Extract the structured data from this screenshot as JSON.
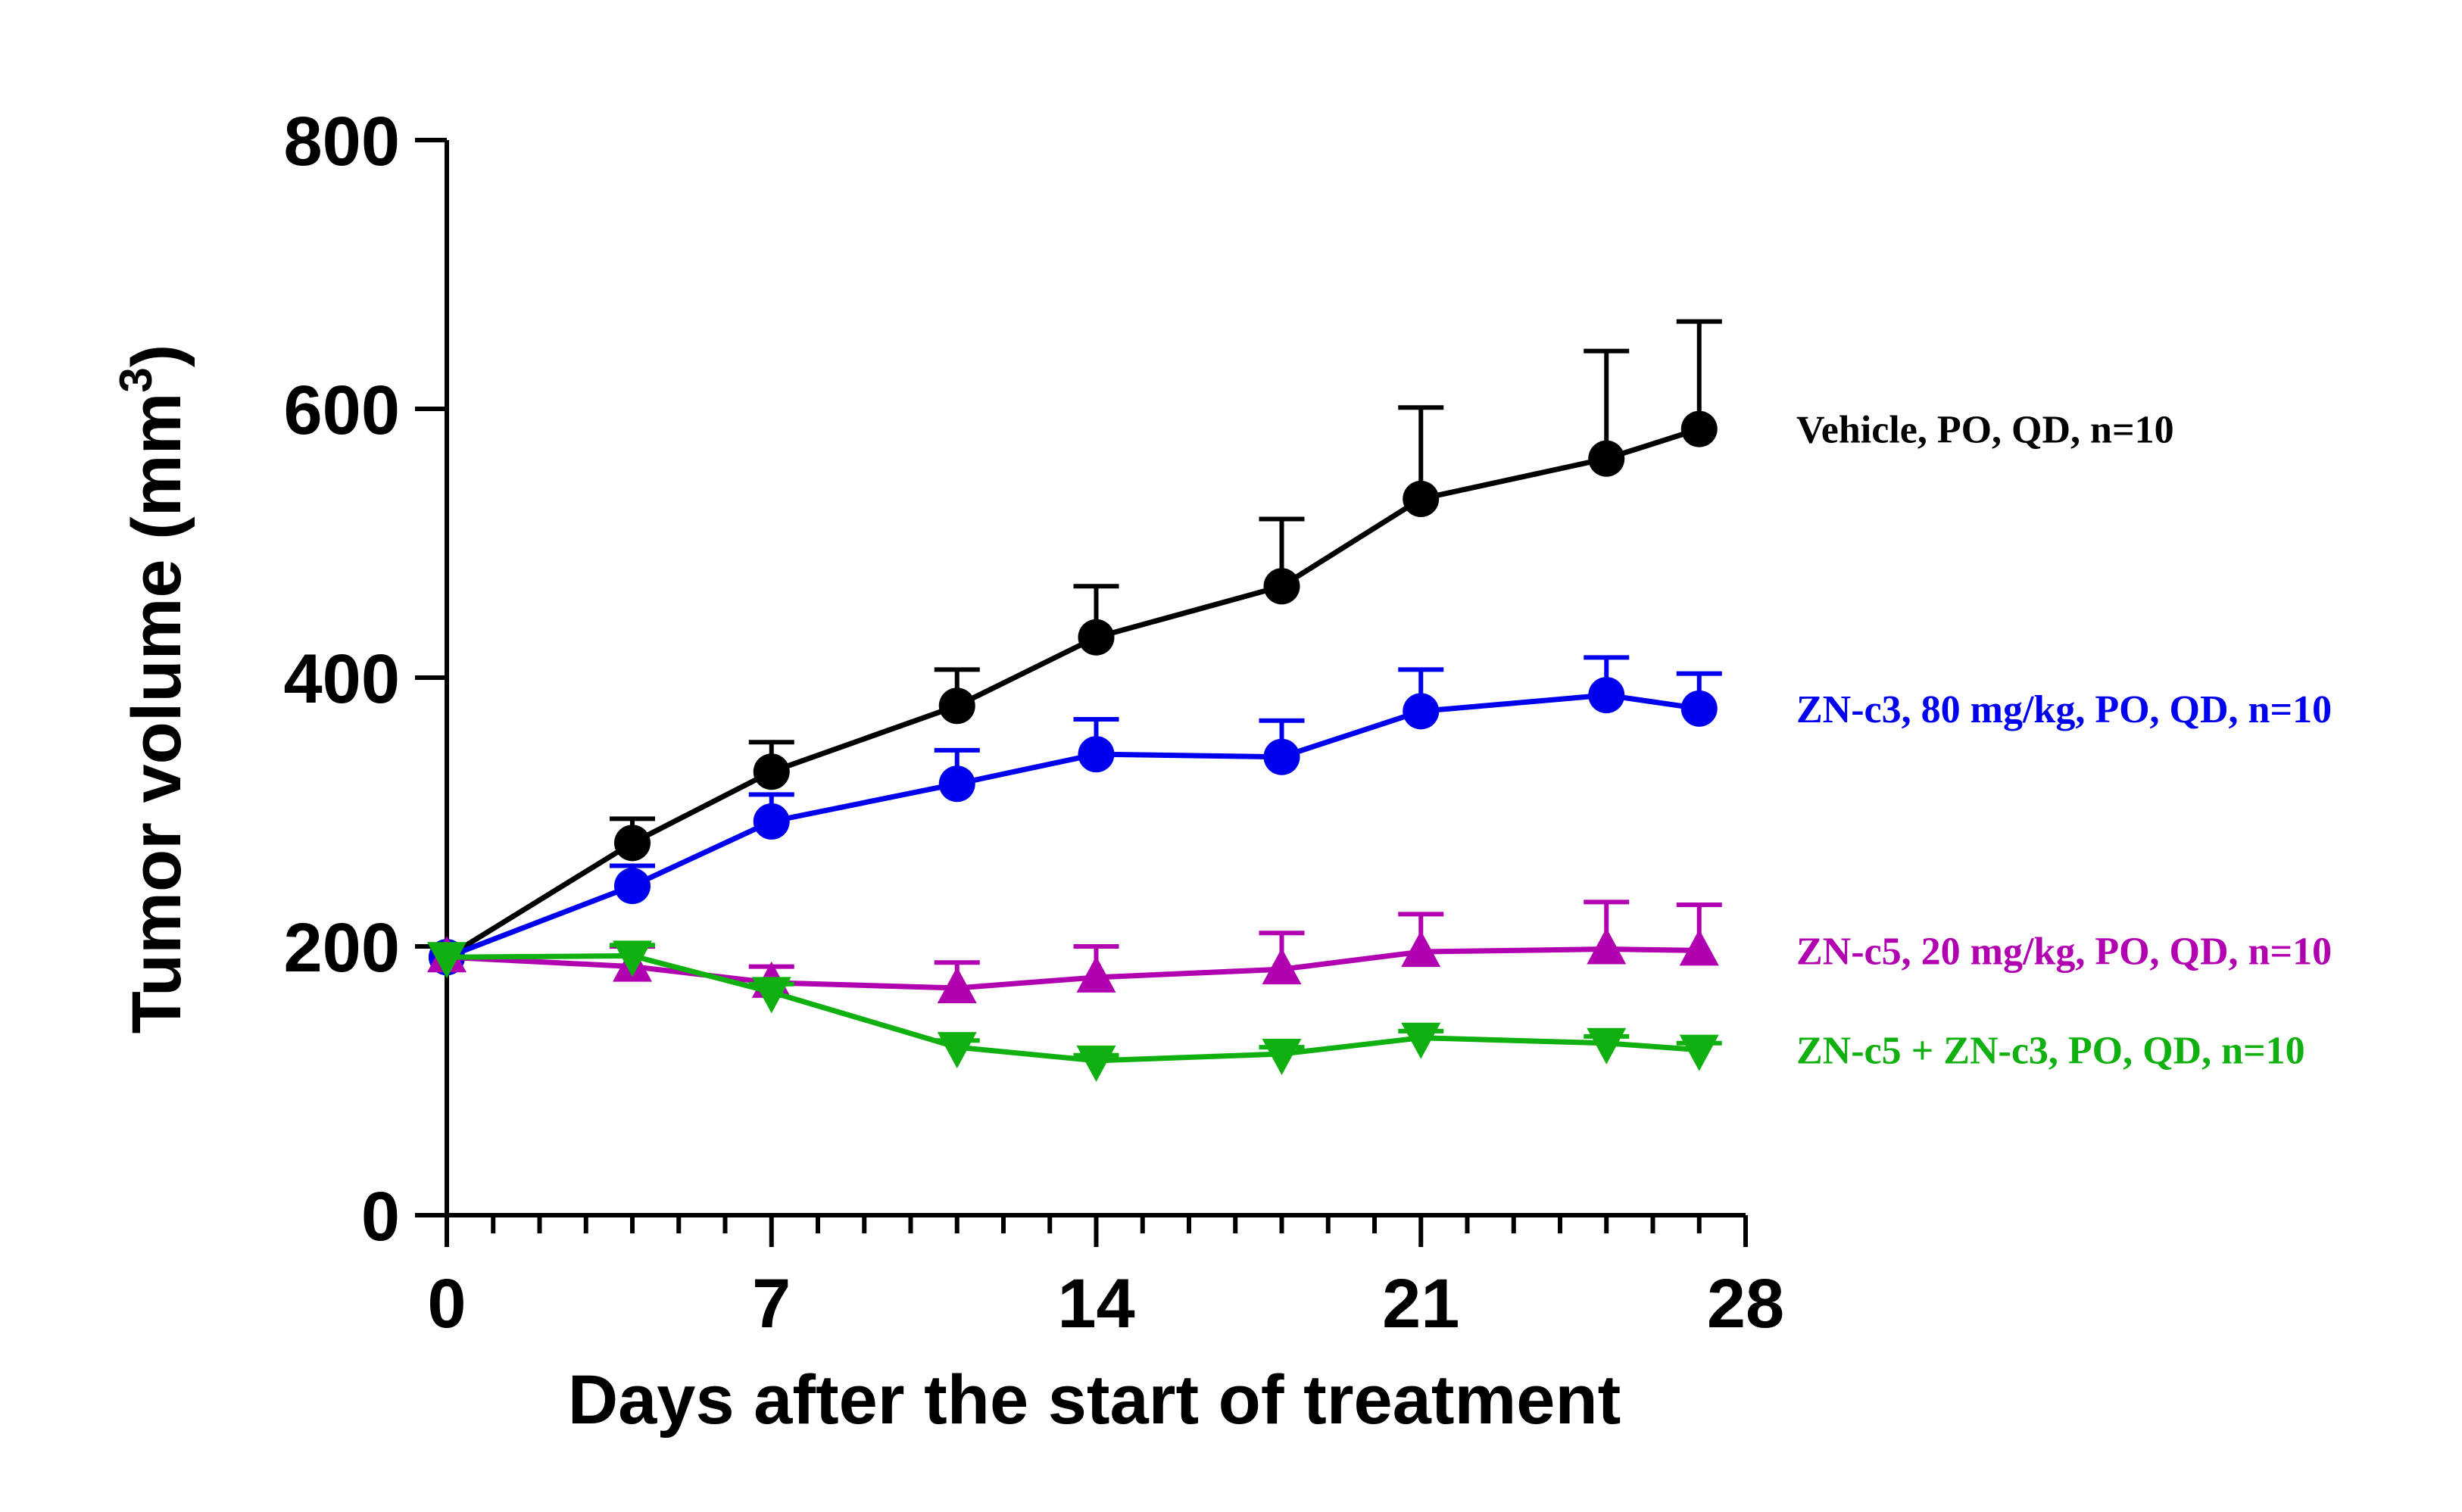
{
  "chart_data": {
    "type": "line",
    "title": "",
    "xlabel": "Days after the start of treatment",
    "ylabel_main": "Tumor volume (mm",
    "ylabel_sup": "3",
    "ylabel_close": ")",
    "xlim": [
      0,
      28
    ],
    "ylim": [
      0,
      800
    ],
    "xticks": [
      "0",
      "7",
      "14",
      "21",
      "28"
    ],
    "yticks": [
      "0",
      "200",
      "400",
      "600",
      "800"
    ],
    "grid": false,
    "legend_position": "right",
    "series": [
      {
        "name": "Vehicle, PO, QD, n=10",
        "color": "#000000",
        "marker": "circle",
        "x": [
          0,
          4,
          7,
          11,
          14,
          18,
          21,
          25,
          27
        ],
        "y": [
          192,
          277,
          330,
          379,
          430,
          468,
          533,
          563,
          585
        ],
        "err": [
          0,
          18,
          22,
          27,
          38,
          50,
          68,
          80,
          80
        ]
      },
      {
        "name": "ZN-c3, 80 mg/kg, PO, QD, n=10",
        "color": "#0000ee",
        "marker": "circle",
        "x": [
          0,
          4,
          7,
          11,
          14,
          18,
          21,
          25,
          27
        ],
        "y": [
          192,
          245,
          293,
          321,
          343,
          341,
          375,
          387,
          377
        ],
        "err": [
          0,
          15,
          20,
          25,
          26,
          27,
          31,
          28,
          26
        ]
      },
      {
        "name": "ZN-c5, 20 mg/kg, PO, QD, n=10",
        "color": "#b000b0",
        "marker": "triangle-up",
        "x": [
          0,
          4,
          7,
          11,
          14,
          18,
          21,
          25,
          27
        ],
        "y": [
          192,
          185,
          173,
          169,
          177,
          183,
          196,
          198,
          197
        ],
        "err": [
          0,
          15,
          12,
          19,
          23,
          27,
          28,
          35,
          34
        ]
      },
      {
        "name": "ZN-c5 + ZN-c3, PO, QD, n=10",
        "color": "#10b010",
        "marker": "triangle-down",
        "x": [
          0,
          4,
          7,
          11,
          14,
          18,
          21,
          25,
          27
        ],
        "y": [
          192,
          193,
          166,
          125,
          115,
          120,
          132,
          128,
          123
        ],
        "err": [
          0,
          8,
          6,
          5,
          4,
          5,
          5,
          5,
          5
        ]
      }
    ]
  }
}
